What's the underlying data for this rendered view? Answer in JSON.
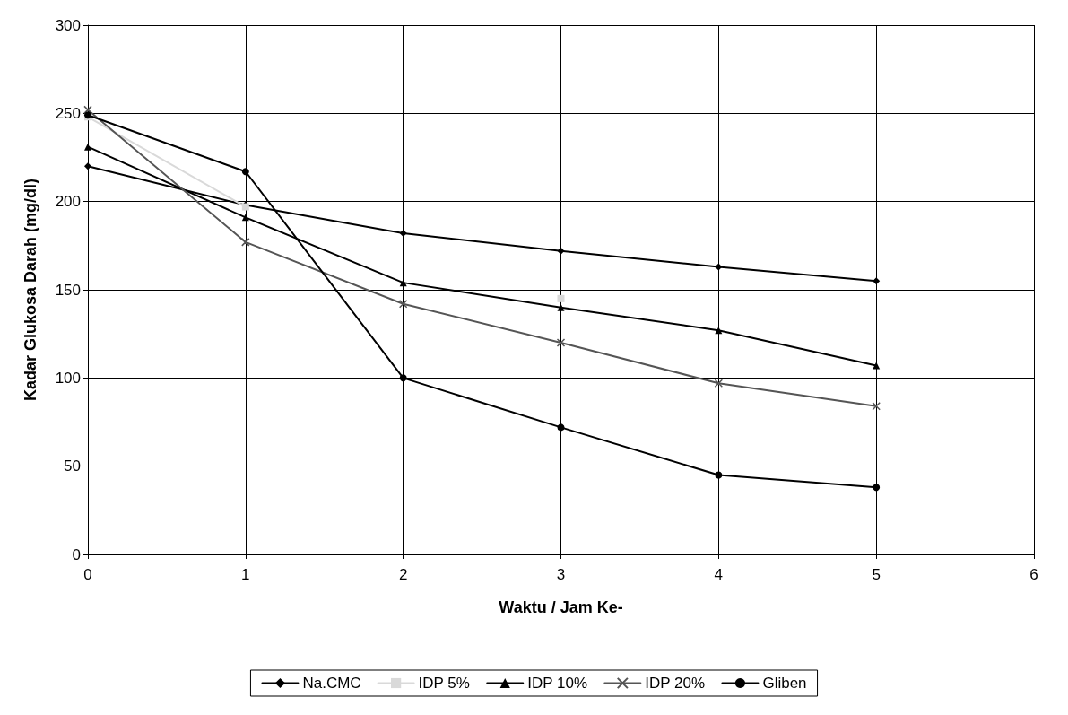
{
  "chart_data": {
    "type": "line",
    "xlabel": "Waktu / Jam Ke-",
    "ylabel": "Kadar Glukosa Darah (mg/dl)",
    "x": [
      0,
      1,
      2,
      3,
      4,
      5
    ],
    "series": [
      {
        "name": "Na.CMC",
        "color": "#000000",
        "marker": "diamond",
        "values": [
          220,
          198,
          182,
          172,
          163,
          155
        ]
      },
      {
        "name": "IDP 5%",
        "color": "#d9d9d9",
        "marker": "square",
        "values": [
          248,
          197,
          null,
          145,
          null,
          null
        ]
      },
      {
        "name": "IDP 10%",
        "color": "#000000",
        "marker": "triangle",
        "values": [
          231,
          191,
          154,
          140,
          127,
          107
        ]
      },
      {
        "name": "IDP 20%",
        "color": "#555555",
        "marker": "cross",
        "values": [
          252,
          177,
          142,
          120,
          97,
          84
        ]
      },
      {
        "name": "Gliben",
        "color": "#000000",
        "marker": "circle",
        "values": [
          249,
          217,
          100,
          72,
          45,
          38
        ]
      }
    ],
    "xlim": [
      0,
      6
    ],
    "xticks": [
      0,
      1,
      2,
      3,
      4,
      5,
      6
    ],
    "ylim": [
      0,
      300
    ],
    "yticks": [
      0,
      50,
      100,
      150,
      200,
      250,
      300
    ],
    "grid": true,
    "legend": "bottom",
    "line_style": "solid"
  }
}
